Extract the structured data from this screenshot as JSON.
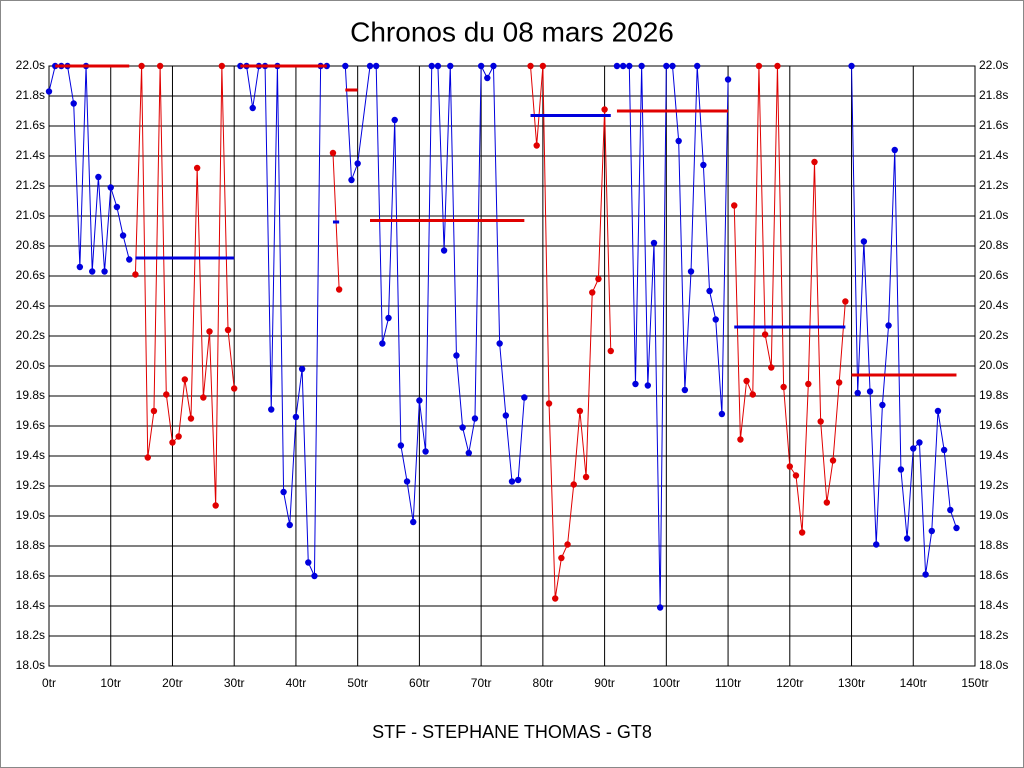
{
  "chart_data": {
    "type": "line",
    "title": "Chronos du 08 mars 2026",
    "xlabel": "STF - STEPHANE THOMAS - GT8",
    "xlim": [
      0,
      150
    ],
    "ylim": [
      18.0,
      22.0
    ],
    "grid": true,
    "xticks": [
      {
        "value": 0,
        "label": "0tr"
      },
      {
        "value": 10,
        "label": "10tr"
      },
      {
        "value": 20,
        "label": "20tr"
      },
      {
        "value": 30,
        "label": "30tr"
      },
      {
        "value": 40,
        "label": "40tr"
      },
      {
        "value": 50,
        "label": "50tr"
      },
      {
        "value": 60,
        "label": "60tr"
      },
      {
        "value": 70,
        "label": "70tr"
      },
      {
        "value": 80,
        "label": "80tr"
      },
      {
        "value": 90,
        "label": "90tr"
      },
      {
        "value": 100,
        "label": "100tr"
      },
      {
        "value": 110,
        "label": "110tr"
      },
      {
        "value": 120,
        "label": "120tr"
      },
      {
        "value": 130,
        "label": "130tr"
      },
      {
        "value": 140,
        "label": "140tr"
      },
      {
        "value": 150,
        "label": "150tr"
      }
    ],
    "yticks": [
      {
        "value": 18.0,
        "label": "18.0s"
      },
      {
        "value": 18.2,
        "label": "18.2s"
      },
      {
        "value": 18.4,
        "label": "18.4s"
      },
      {
        "value": 18.6,
        "label": "18.6s"
      },
      {
        "value": 18.8,
        "label": "18.8s"
      },
      {
        "value": 19.0,
        "label": "19.0s"
      },
      {
        "value": 19.2,
        "label": "19.2s"
      },
      {
        "value": 19.4,
        "label": "19.4s"
      },
      {
        "value": 19.6,
        "label": "19.6s"
      },
      {
        "value": 19.8,
        "label": "19.8s"
      },
      {
        "value": 20.0,
        "label": "20.0s"
      },
      {
        "value": 20.2,
        "label": "20.2s"
      },
      {
        "value": 20.4,
        "label": "20.4s"
      },
      {
        "value": 20.6,
        "label": "20.6s"
      },
      {
        "value": 20.8,
        "label": "20.8s"
      },
      {
        "value": 21.0,
        "label": "21.0s"
      },
      {
        "value": 21.2,
        "label": "21.2s"
      },
      {
        "value": 21.4,
        "label": "21.4s"
      },
      {
        "value": 21.6,
        "label": "21.6s"
      },
      {
        "value": 21.8,
        "label": "21.8s"
      },
      {
        "value": 22.0,
        "label": "22.0s"
      }
    ],
    "series": [
      {
        "color": "#0000dd",
        "markers": true,
        "line_width": 1,
        "x": [
          0,
          1,
          2,
          3,
          4,
          5,
          6,
          7,
          8,
          9,
          10,
          11,
          12,
          13
        ],
        "values": [
          21.83,
          22.0,
          22.0,
          22.0,
          21.75,
          20.66,
          22.0,
          20.63,
          21.26,
          20.63,
          21.19,
          21.06,
          20.87,
          20.71
        ]
      },
      {
        "color": "#e00000",
        "markers": true,
        "line_width": 1,
        "x": [
          14,
          15,
          16,
          17,
          18,
          19,
          20,
          21,
          22,
          23,
          24,
          25,
          26,
          27,
          28,
          29,
          30
        ],
        "values": [
          20.61,
          22.0,
          19.39,
          19.7,
          22.0,
          19.81,
          19.49,
          19.53,
          19.91,
          19.65,
          21.32,
          19.79,
          20.23,
          19.07,
          22.0,
          20.24,
          19.85
        ]
      },
      {
        "color": "#0000dd",
        "markers": true,
        "line_width": 1,
        "x": [
          31,
          32,
          33,
          34,
          35,
          36,
          37,
          38,
          39,
          40,
          41,
          42,
          43,
          44,
          45
        ],
        "values": [
          22.0,
          22.0,
          21.72,
          22.0,
          22.0,
          19.71,
          22.0,
          19.16,
          18.94,
          19.66,
          19.98,
          18.69,
          18.6,
          22.0,
          22.0
        ]
      },
      {
        "color": "#e00000",
        "markers": true,
        "line_width": 1,
        "x": [
          46,
          47
        ],
        "values": [
          21.42,
          20.51
        ]
      },
      {
        "color": "#0000dd",
        "markers": true,
        "line_width": 1,
        "x": [
          48,
          49,
          50,
          52,
          53,
          54,
          55,
          56,
          57,
          58,
          59,
          60,
          61,
          62,
          63,
          64,
          65,
          66,
          67,
          68,
          69,
          70,
          71,
          72,
          73,
          74,
          75,
          76,
          77
        ],
        "values": [
          22.0,
          21.24,
          21.35,
          22.0,
          22.0,
          20.15,
          20.32,
          21.64,
          19.47,
          19.23,
          18.96,
          19.77,
          19.43,
          22.0,
          22.0,
          20.77,
          22.0,
          20.07,
          19.59,
          19.42,
          19.65,
          22.0,
          21.92,
          22.0,
          20.15,
          19.67,
          19.23,
          19.24,
          19.79
        ]
      },
      {
        "color": "#e00000",
        "markers": true,
        "line_width": 1,
        "x": [
          78,
          79,
          80,
          81,
          82,
          83,
          84,
          85,
          86,
          87,
          88,
          89,
          90,
          91
        ],
        "values": [
          22.0,
          21.47,
          22.0,
          19.75,
          18.45,
          18.72,
          18.81,
          19.21,
          19.7,
          19.26,
          20.49,
          20.58,
          21.71,
          20.1
        ]
      },
      {
        "color": "#0000dd",
        "markers": true,
        "line_width": 1,
        "x": [
          92,
          93,
          94,
          95,
          96,
          97,
          98,
          99,
          100,
          101,
          102,
          103,
          104,
          105,
          106,
          107,
          108,
          109,
          110
        ],
        "values": [
          22.0,
          22.0,
          22.0,
          19.88,
          22.0,
          19.87,
          20.82,
          18.39,
          22.0,
          22.0,
          21.5,
          19.84,
          20.63,
          22.0,
          21.34,
          20.5,
          20.31,
          19.68,
          21.91
        ]
      },
      {
        "color": "#e00000",
        "markers": true,
        "line_width": 1,
        "x": [
          111,
          112,
          113,
          114,
          115,
          116,
          117,
          118,
          119,
          120,
          121,
          122,
          123,
          124,
          125,
          126,
          127,
          128,
          129
        ],
        "values": [
          21.07,
          19.51,
          19.9,
          19.81,
          22.0,
          20.21,
          19.99,
          22.0,
          19.86,
          19.33,
          19.27,
          18.89,
          19.88,
          21.36,
          19.63,
          19.09,
          19.37,
          19.89,
          20.43
        ]
      },
      {
        "color": "#0000dd",
        "markers": true,
        "line_width": 1,
        "x": [
          130,
          131,
          132,
          133,
          134,
          135,
          136,
          137,
          138,
          139,
          140,
          141,
          142,
          143,
          144,
          145,
          146,
          147
        ],
        "values": [
          22.0,
          19.82,
          20.83,
          19.83,
          18.81,
          19.74,
          20.27,
          21.44,
          19.31,
          18.85,
          19.45,
          19.49,
          18.61,
          18.9,
          19.7,
          19.44,
          19.04,
          18.92
        ]
      },
      {
        "color": "#e00000",
        "markers": false,
        "line_width": 3,
        "x": [
          1,
          13
        ],
        "values": [
          22.0,
          22.0
        ]
      },
      {
        "color": "#0000dd",
        "markers": false,
        "line_width": 3,
        "x": [
          14,
          30
        ],
        "values": [
          20.72,
          20.72
        ]
      },
      {
        "color": "#e00000",
        "markers": false,
        "line_width": 3,
        "x": [
          31,
          45
        ],
        "values": [
          22.0,
          22.0
        ]
      },
      {
        "color": "#0000dd",
        "markers": false,
        "line_width": 3,
        "x": [
          46,
          47
        ],
        "values": [
          20.96,
          20.96
        ]
      },
      {
        "color": "#e00000",
        "markers": false,
        "line_width": 3,
        "x": [
          48,
          50
        ],
        "values": [
          21.84,
          21.84
        ]
      },
      {
        "color": "#e00000",
        "markers": false,
        "line_width": 3,
        "x": [
          52,
          77
        ],
        "values": [
          20.97,
          20.97
        ]
      },
      {
        "color": "#0000dd",
        "markers": false,
        "line_width": 3,
        "x": [
          78,
          91
        ],
        "values": [
          21.67,
          21.67
        ]
      },
      {
        "color": "#e00000",
        "markers": false,
        "line_width": 3,
        "x": [
          92,
          110
        ],
        "values": [
          21.7,
          21.7
        ]
      },
      {
        "color": "#0000dd",
        "markers": false,
        "line_width": 3,
        "x": [
          111,
          129
        ],
        "values": [
          20.26,
          20.26
        ]
      },
      {
        "color": "#e00000",
        "markers": false,
        "line_width": 3,
        "x": [
          130,
          147
        ],
        "values": [
          19.94,
          19.94
        ]
      }
    ]
  }
}
